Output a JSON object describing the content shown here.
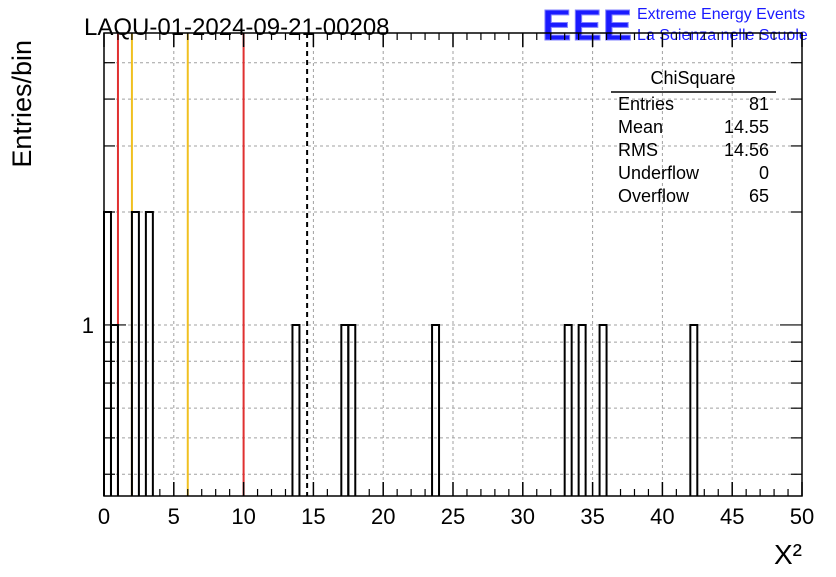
{
  "chart_data": {
    "type": "bar",
    "title": "LAQU-01-2024-09-21-00208",
    "xlabel": "X²",
    "ylabel": "Entries/bin",
    "xlim": [
      0,
      50
    ],
    "ylim_log": [
      0.35,
      6
    ],
    "log_y": true,
    "grid": true,
    "bin_width": 0.5,
    "x_ticks": [
      0,
      5,
      10,
      15,
      20,
      25,
      30,
      35,
      40,
      45,
      50
    ],
    "y_tick_labels": [
      {
        "value": 1,
        "label": "1"
      }
    ],
    "bins": [
      {
        "x": 0.0,
        "value": 2
      },
      {
        "x": 0.5,
        "value": 1
      },
      {
        "x": 2.0,
        "value": 2
      },
      {
        "x": 3.0,
        "value": 2
      },
      {
        "x": 13.5,
        "value": 1
      },
      {
        "x": 17.0,
        "value": 1
      },
      {
        "x": 17.5,
        "value": 1
      },
      {
        "x": 23.5,
        "value": 1
      },
      {
        "x": 33.0,
        "value": 1
      },
      {
        "x": 34.0,
        "value": 1
      },
      {
        "x": 35.5,
        "value": 1
      },
      {
        "x": 42.0,
        "value": 1
      }
    ],
    "vertical_lines": [
      {
        "x": 1,
        "color": "#e03030",
        "style": "solid"
      },
      {
        "x": 2,
        "color": "#f0c020",
        "style": "solid"
      },
      {
        "x": 6,
        "color": "#f0c020",
        "style": "solid"
      },
      {
        "x": 10,
        "color": "#e03030",
        "style": "solid"
      },
      {
        "x": 14.55,
        "color": "#000000",
        "style": "dashed"
      }
    ],
    "stats_box": {
      "title": "ChiSquare",
      "rows": [
        {
          "label": "Entries",
          "value": "81"
        },
        {
          "label": "Mean",
          "value": "14.55"
        },
        {
          "label": "RMS",
          "value": "14.56"
        },
        {
          "label": "Underflow",
          "value": "0"
        },
        {
          "label": "Overflow",
          "value": "65"
        }
      ]
    }
  },
  "logo": {
    "text": "EEE",
    "line1": "Extreme Energy Events",
    "line2": "La Scienza nelle Scuole",
    "color": "#1a1aff"
  }
}
